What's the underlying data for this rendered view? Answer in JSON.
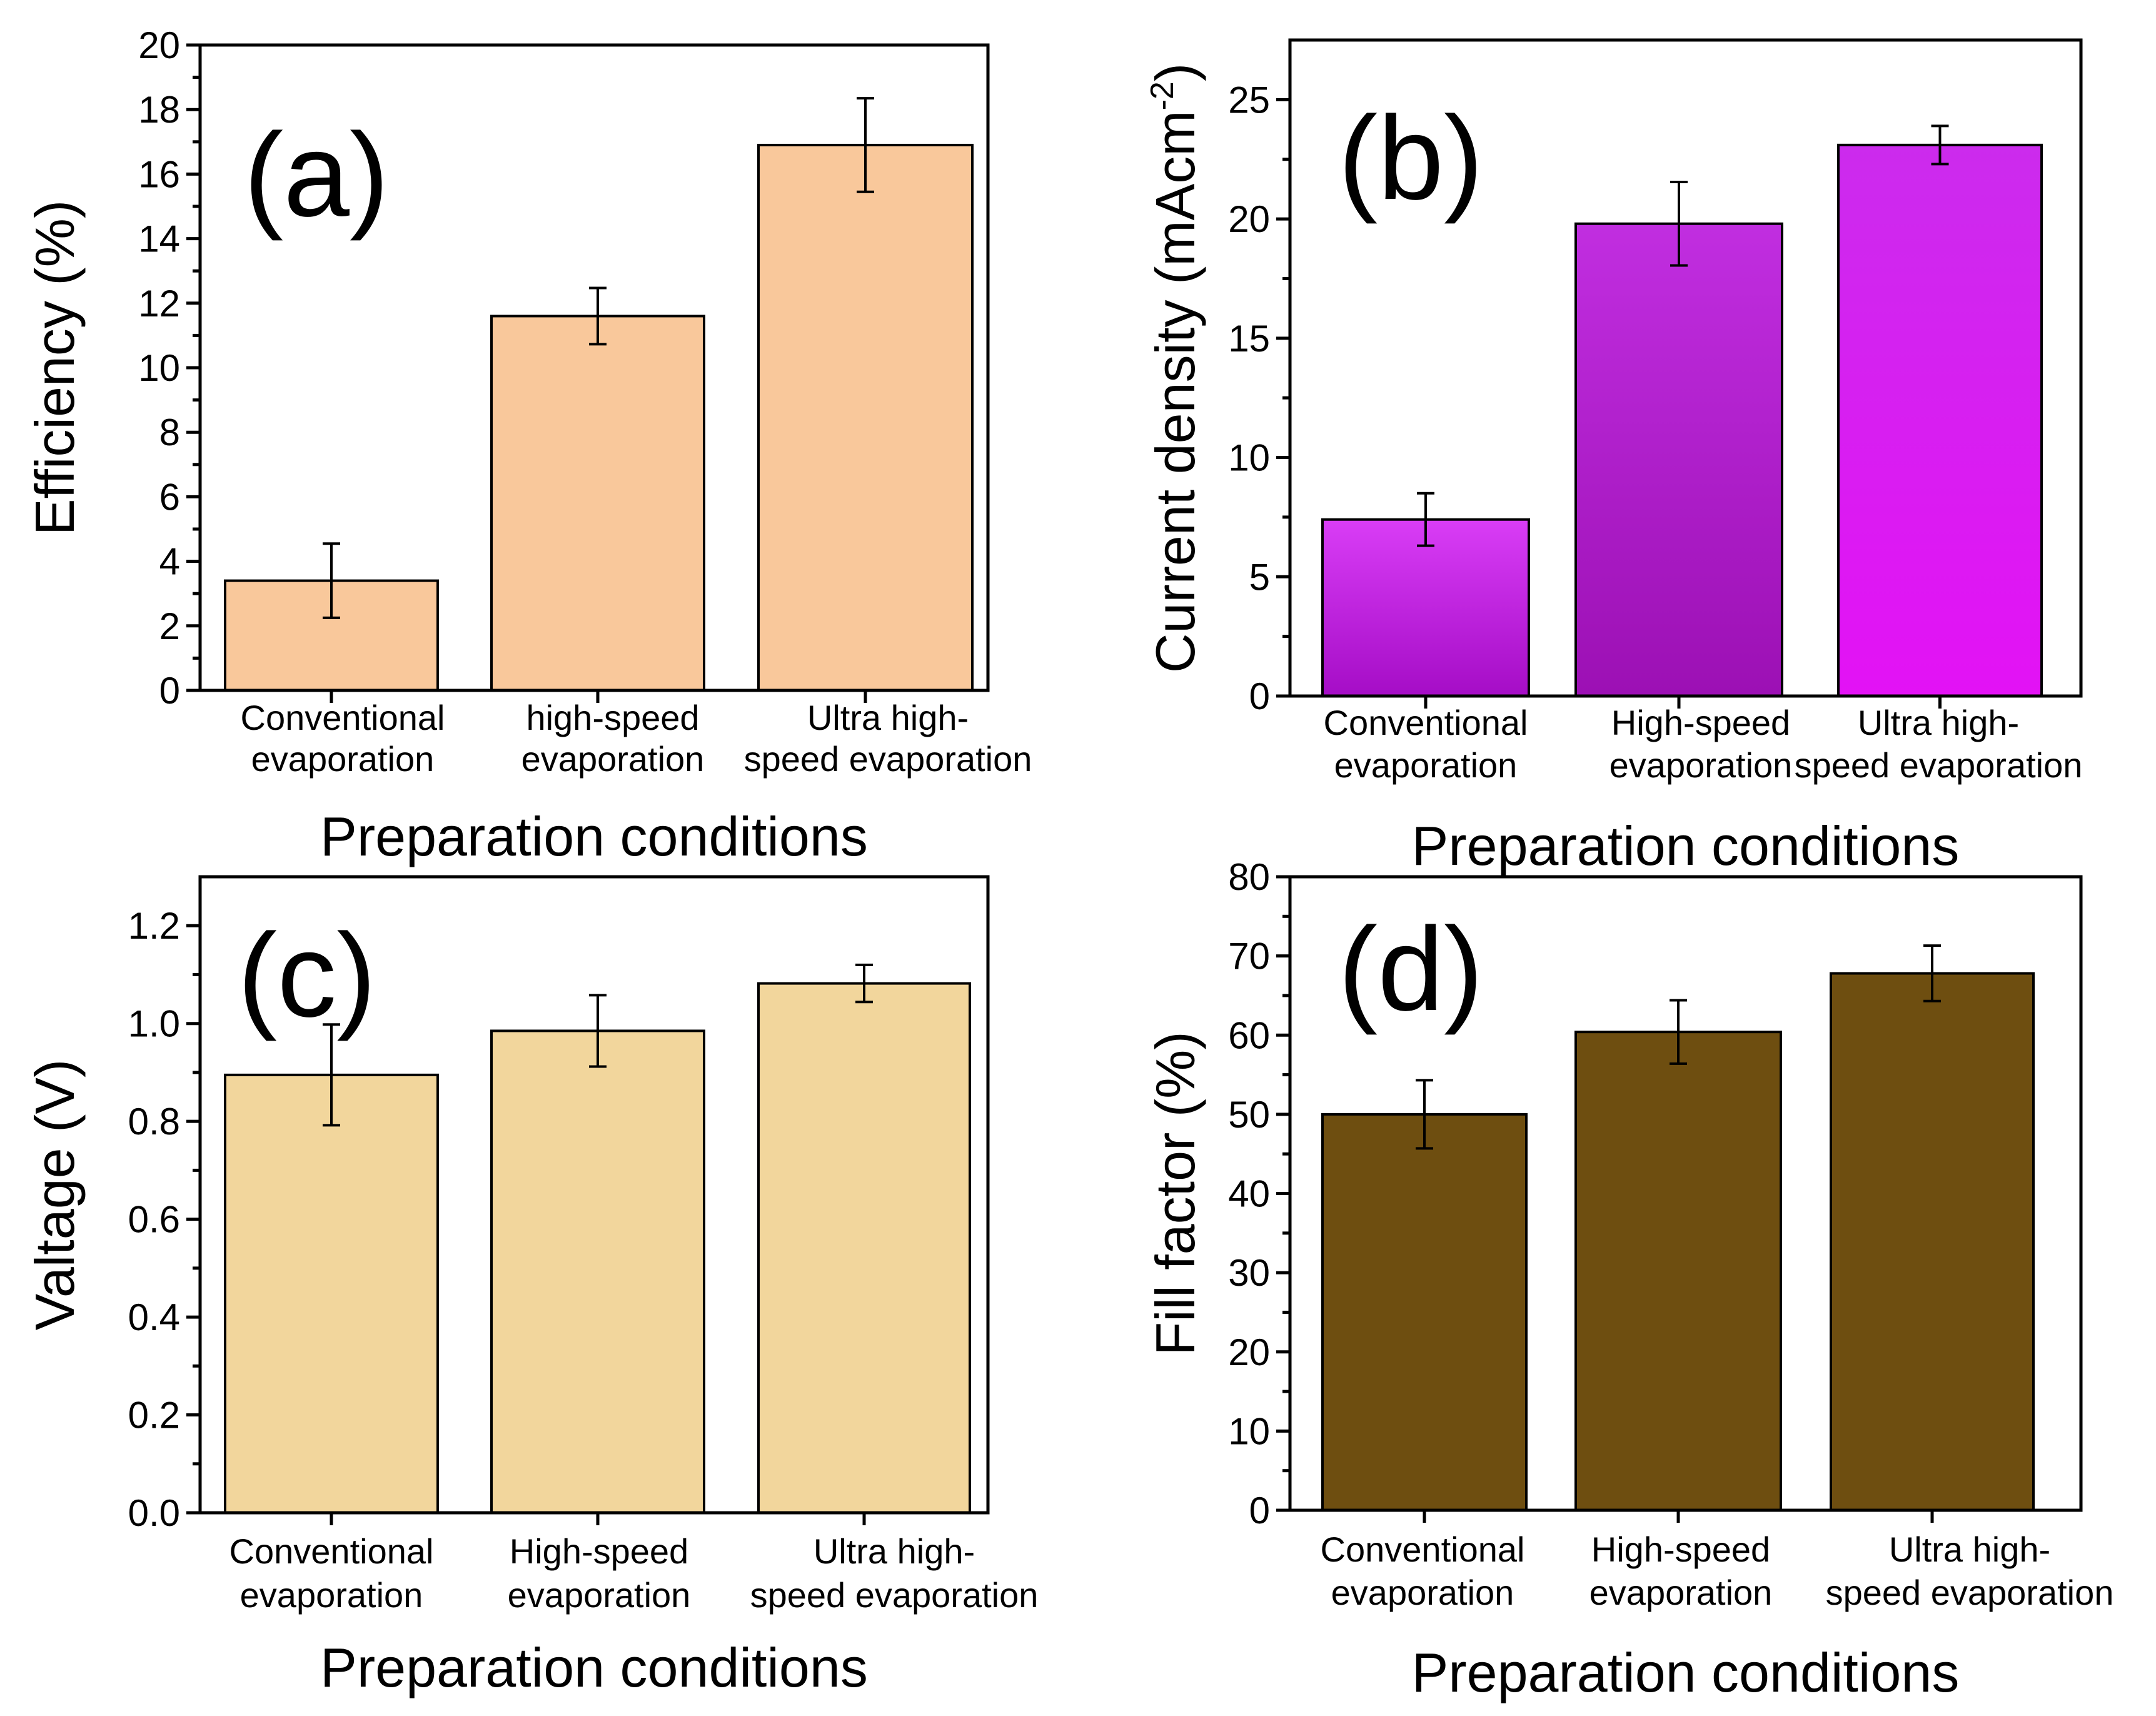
{
  "chart_data": [
    {
      "id": "a",
      "type": "bar",
      "panel_label": "(a)",
      "title": "",
      "xlabel": "Preparation conditions",
      "ylabel": "Efficiency (%)",
      "ylim": [
        0,
        20
      ],
      "yticks": [
        0,
        2,
        4,
        6,
        8,
        10,
        12,
        14,
        16,
        18,
        20
      ],
      "yticks_minor": [
        1,
        3,
        5,
        7,
        9,
        11,
        13,
        15,
        17,
        19
      ],
      "categories": [
        [
          "Conventional",
          "evaporation"
        ],
        [
          "high-speed",
          "evaporation"
        ],
        [
          "Ultra high-",
          "speed evaporation"
        ]
      ],
      "values": [
        3.4,
        11.6,
        16.9
      ],
      "errors": [
        1.15,
        0.87,
        1.45
      ],
      "color": "#F9C89B"
    },
    {
      "id": "b",
      "type": "bar",
      "panel_label": "(b)",
      "title": "",
      "xlabel": "Preparation conditions",
      "ylabel": "Current density (mAcm-2)",
      "ylabel_parts": [
        "Current density (mAcm",
        "-2",
        ")"
      ],
      "ylim": [
        0,
        27.5
      ],
      "yticks": [
        0,
        5,
        10,
        15,
        20,
        25
      ],
      "yticks_minor": [
        2.5,
        7.5,
        12.5,
        17.5,
        22.5
      ],
      "categories": [
        [
          "Conventional",
          "evaporation"
        ],
        [
          "High-speed",
          "evaporation"
        ],
        [
          "Ultra high-",
          "speed evaporation"
        ]
      ],
      "values": [
        7.4,
        19.8,
        23.1
      ],
      "errors": [
        1.1,
        1.75,
        0.8
      ],
      "color_top": [
        "#D93DF6",
        "#C12EE0",
        "#CC2BED"
      ],
      "color_bottom": [
        "#A50DC6",
        "#9C10B4",
        "#E312F5"
      ]
    },
    {
      "id": "c",
      "type": "bar",
      "panel_label": "(c)",
      "title": "",
      "xlabel": "Preparation conditions",
      "ylabel": "Valtage (V)",
      "ylim": [
        0,
        1.3
      ],
      "yticks": [
        "0.0",
        "0.2",
        "0.4",
        "0.6",
        "0.8",
        "1.0",
        "1.2"
      ],
      "yticks_minor": [
        0.1,
        0.3,
        0.5,
        0.7,
        0.9,
        1.1
      ],
      "categories": [
        [
          "Conventional",
          "evaporation"
        ],
        [
          "High-speed",
          "evaporation"
        ],
        [
          "Ultra high-",
          "speed evaporation"
        ]
      ],
      "values": [
        0.895,
        0.985,
        1.082
      ],
      "errors": [
        0.103,
        0.073,
        0.038
      ],
      "color": "#F2D69C"
    },
    {
      "id": "d",
      "type": "bar",
      "panel_label": "(d)",
      "title": "",
      "xlabel": "Preparation conditions",
      "ylabel": "Fill factor (%)",
      "ylim": [
        0,
        80
      ],
      "yticks": [
        0,
        10,
        20,
        30,
        40,
        50,
        60,
        70,
        80
      ],
      "yticks_minor": [
        5,
        15,
        25,
        35,
        45,
        55,
        65,
        75
      ],
      "categories": [
        [
          "Conventional",
          "evaporation"
        ],
        [
          "High-speed",
          "evaporation"
        ],
        [
          "Ultra high-",
          "speed evaporation"
        ]
      ],
      "values": [
        50.0,
        60.4,
        67.8
      ],
      "errors": [
        4.3,
        4.0,
        3.5
      ],
      "color": "#6E4E10"
    }
  ]
}
